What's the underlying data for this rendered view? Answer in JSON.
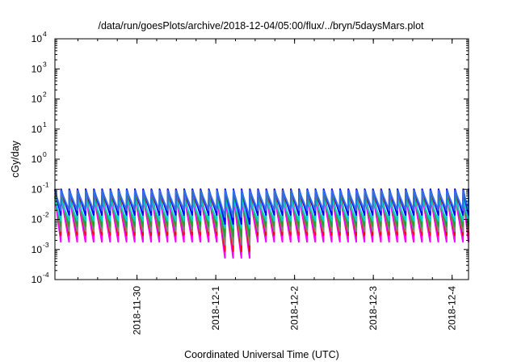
{
  "chart_data": {
    "type": "line",
    "title": "/data/run/goesPlots/archive/2018-12-04/05:00/flux/../bryn/5daysMars.plot",
    "xlabel": "Coordinated Universal Time (UTC)",
    "ylabel": "cGy/day",
    "y_scale": "log",
    "ylim": [
      0.0001,
      10000
    ],
    "xlim": [
      "2018-11-28T23:00",
      "2018-12-04T05:00"
    ],
    "grid": false,
    "legend": "none",
    "y_ticks": [
      {
        "base": "10",
        "exp": "-4"
      },
      {
        "base": "10",
        "exp": "-3"
      },
      {
        "base": "10",
        "exp": "-2"
      },
      {
        "base": "10",
        "exp": "-1"
      },
      {
        "base": "10",
        "exp": "0"
      },
      {
        "base": "10",
        "exp": "1"
      },
      {
        "base": "10",
        "exp": "2"
      },
      {
        "base": "10",
        "exp": "3"
      },
      {
        "base": "10",
        "exp": "4"
      }
    ],
    "x_ticks": [
      {
        "label": "2018-11-30",
        "value": "2018-11-30T00:00"
      },
      {
        "label": "2018-12-1",
        "value": "2018-12-01T00:00"
      },
      {
        "label": "2018-12-2",
        "value": "2018-12-02T00:00"
      },
      {
        "label": "2018-12-3",
        "value": "2018-12-03T00:00"
      },
      {
        "label": "2018-12-4",
        "value": "2018-12-04T00:00"
      }
    ],
    "sawtooth_period_hours": 2.5,
    "series": [
      {
        "color": "#ff00ff",
        "peak": 0.06,
        "trough": 0.0018
      },
      {
        "color": "#ff0000",
        "peak": 0.1,
        "trough": 0.003
      },
      {
        "color": "#808080",
        "peak": 0.075,
        "trough": 0.004
      },
      {
        "color": "#2ca02c",
        "peak": 0.055,
        "trough": 0.006
      },
      {
        "color": "#00d0d0",
        "peak": 0.045,
        "trough": 0.009
      },
      {
        "color": "#0000ff",
        "peak": 0.1,
        "trough": 0.014
      },
      {
        "color": "#3070e0",
        "peak": 0.09,
        "trough": 0.02
      }
    ]
  }
}
